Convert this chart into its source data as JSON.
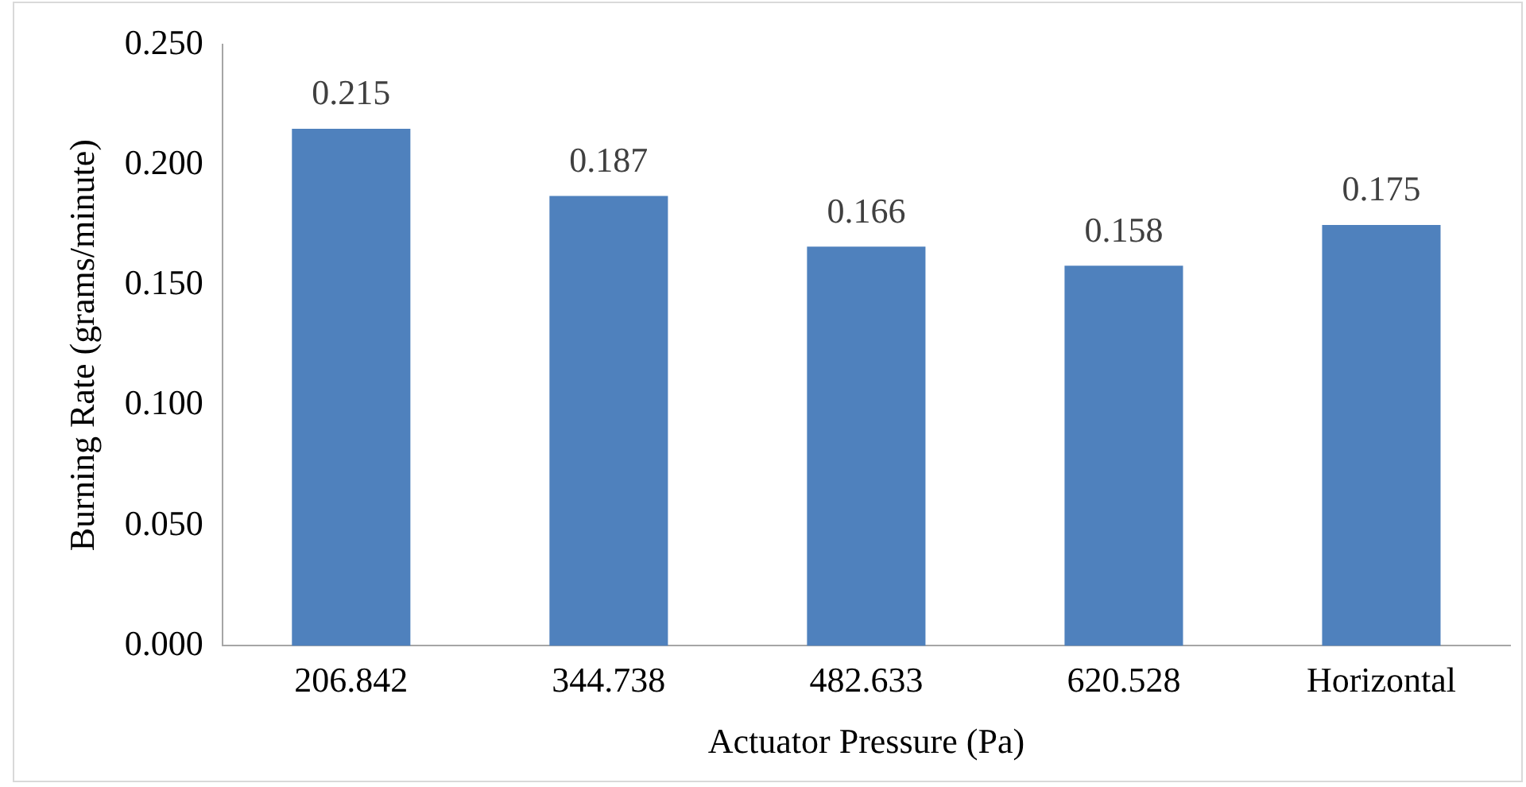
{
  "chart_data": {
    "type": "bar",
    "xlabel": "Actuator Pressure (Pa)",
    "ylabel": "Burning Rate (grams/minute)",
    "categories": [
      "206.842",
      "344.738",
      "482.633",
      "620.528",
      "Horizontal"
    ],
    "values": [
      0.215,
      0.187,
      0.166,
      0.158,
      0.175
    ],
    "color": "#4f81bd",
    "ylim": [
      0,
      0.25
    ],
    "yticks": [
      {
        "value": 0,
        "label": "0.000"
      },
      {
        "value": 0.05,
        "label": "0.050"
      },
      {
        "value": 0.1,
        "label": "0.100"
      },
      {
        "value": 0.15,
        "label": "0.150"
      },
      {
        "value": 0.2,
        "label": "0.200"
      },
      {
        "value": 0.25,
        "label": "0.250"
      }
    ],
    "value_labels": [
      "0.215",
      "0.187",
      "0.166",
      "0.158",
      "0.175"
    ],
    "grid": false,
    "legend": false
  }
}
